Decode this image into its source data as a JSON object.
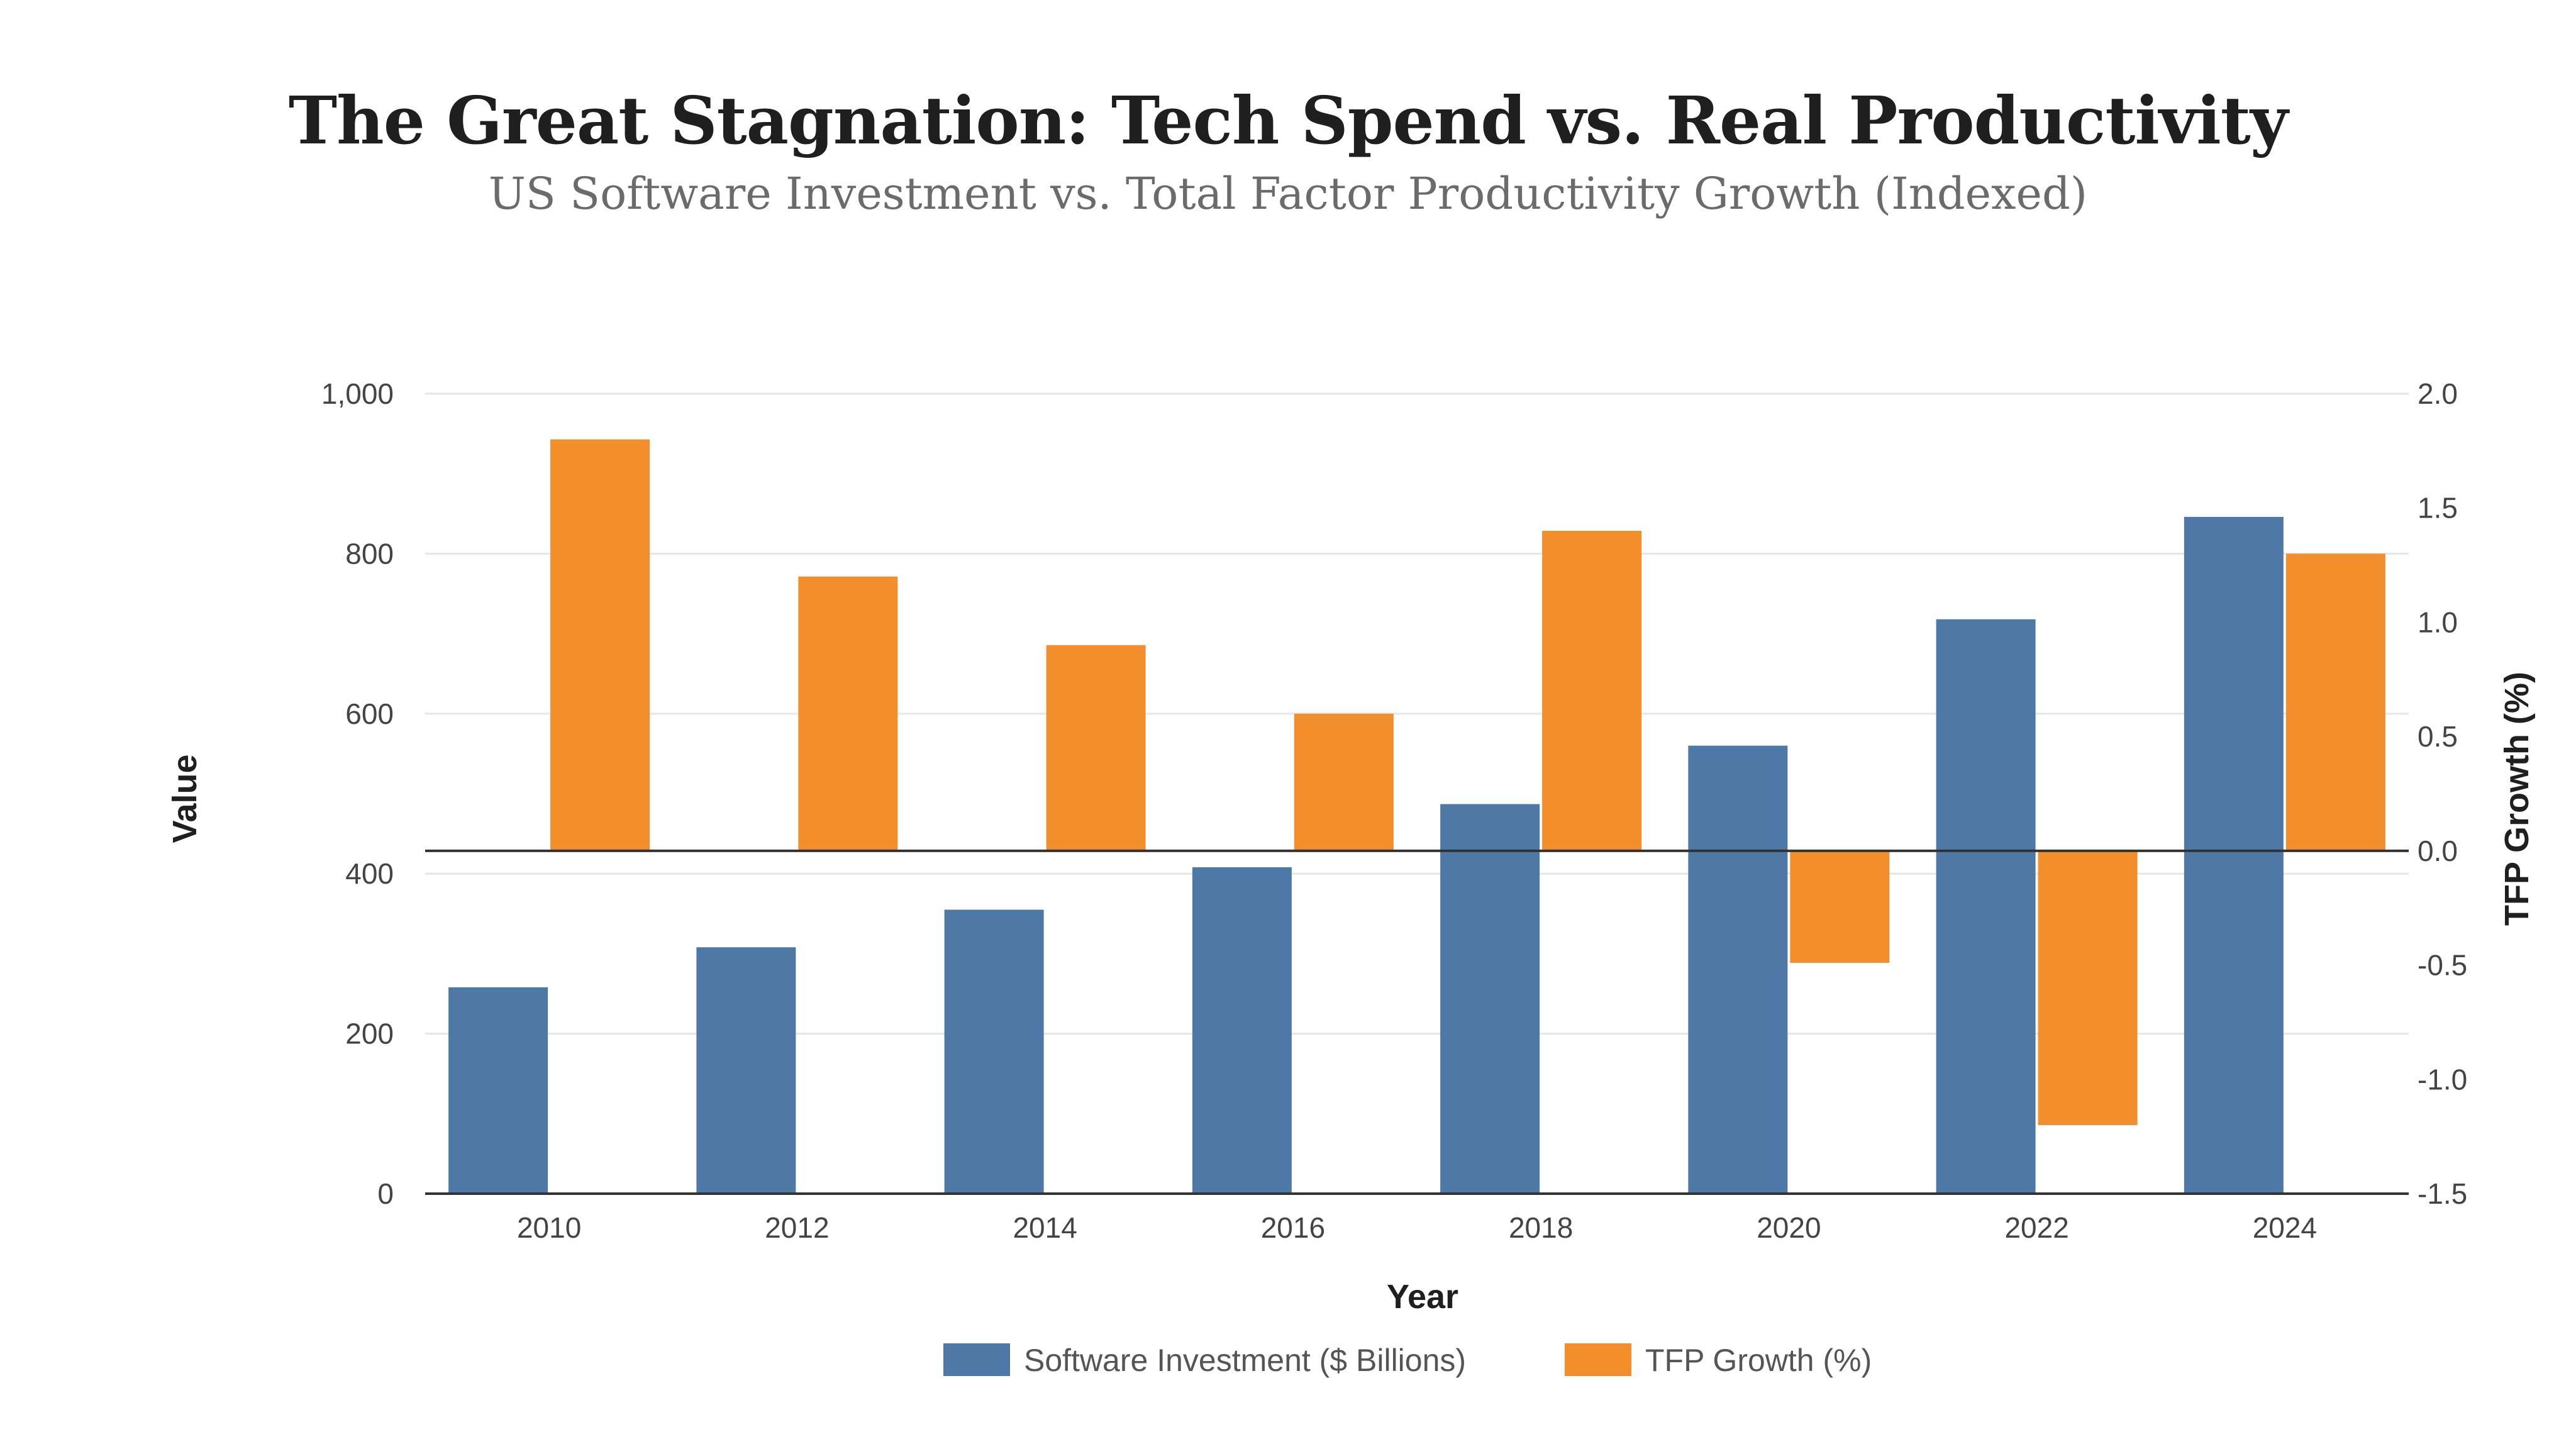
{
  "header": {
    "title": "The Great Stagnation: Tech Spend vs. Real Productivity",
    "subtitle": "US Software Investment vs. Total Factor Productivity Growth (Indexed)"
  },
  "colors": {
    "software": "#4e79a7",
    "tfp": "#f28e2b",
    "grid": "#e6e6e6",
    "axis": "#333333"
  },
  "chart_data": {
    "type": "bar",
    "title": "The Great Stagnation: Tech Spend vs. Real Productivity",
    "subtitle": "US Software Investment vs. Total Factor Productivity Growth (Indexed)",
    "xlabel": "Year",
    "ylabel": "Value",
    "y2label": "TFP Growth (%)",
    "categories": [
      "2010",
      "2012",
      "2014",
      "2016",
      "2018",
      "2020",
      "2022",
      "2024"
    ],
    "ylim": [
      0,
      1000
    ],
    "y2lim": [
      -1.5,
      2.0
    ],
    "yticks": [
      0,
      200,
      400,
      600,
      800,
      1000
    ],
    "ytick_labels": [
      "0",
      "200",
      "400",
      "600",
      "800",
      "1,000"
    ],
    "y2ticks": [
      -1.5,
      -1.0,
      -0.5,
      0.0,
      0.5,
      1.0,
      1.5,
      2.0
    ],
    "y2tick_labels": [
      "-1.5",
      "-1.0",
      "-0.5",
      "0.0",
      "0.5",
      "1.0",
      "1.5",
      "2.0"
    ],
    "grid": true,
    "legend_position": "bottom",
    "series": [
      {
        "name": "Software Investment ($ Billions)",
        "axis": "left",
        "values": [
          258,
          308,
          355,
          408,
          487,
          560,
          718,
          846
        ]
      },
      {
        "name": "TFP Growth (%)",
        "axis": "right",
        "values": [
          1.8,
          1.2,
          0.9,
          0.6,
          1.4,
          -0.49,
          -1.2,
          1.3
        ]
      }
    ]
  }
}
